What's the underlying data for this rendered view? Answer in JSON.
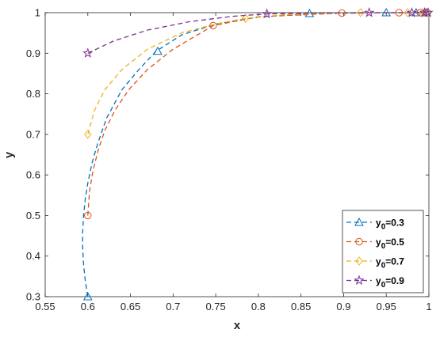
{
  "chart_data": {
    "type": "line",
    "xlabel": "x",
    "ylabel": "y",
    "xlim": [
      0.55,
      1.0
    ],
    "ylim": [
      0.3,
      1.0
    ],
    "xticks": [
      "0.55",
      "0.6",
      "0.65",
      "0.7",
      "0.75",
      "0.8",
      "0.85",
      "0.9",
      "0.95",
      "1"
    ],
    "yticks": [
      "0.3",
      "0.4",
      "0.5",
      "0.6",
      "0.7",
      "0.8",
      "0.9",
      "1"
    ],
    "grid": false,
    "legend_position": "bottom-right",
    "series": [
      {
        "name_base": "y",
        "name_sub": "0",
        "name_value": "=0.3",
        "color": "#0072BD",
        "marker": "triangle",
        "line": [
          [
            0.6,
            0.3
          ],
          [
            0.597,
            0.34
          ],
          [
            0.595,
            0.38
          ],
          [
            0.594,
            0.42
          ],
          [
            0.594,
            0.46
          ],
          [
            0.595,
            0.5
          ],
          [
            0.597,
            0.54
          ],
          [
            0.6,
            0.58
          ],
          [
            0.605,
            0.63
          ],
          [
            0.612,
            0.68
          ],
          [
            0.622,
            0.74
          ],
          [
            0.64,
            0.81
          ],
          [
            0.66,
            0.86
          ],
          [
            0.68,
            0.905
          ],
          [
            0.71,
            0.945
          ],
          [
            0.75,
            0.972
          ],
          [
            0.8,
            0.989
          ],
          [
            0.86,
            0.997
          ],
          [
            0.95,
            1.0
          ],
          [
            1.0,
            1.0
          ]
        ],
        "markers": [
          [
            0.6,
            0.3
          ],
          [
            0.682,
            0.905
          ],
          [
            0.86,
            0.998
          ],
          [
            0.95,
            1.0
          ],
          [
            0.985,
            1.0
          ],
          [
            0.997,
            1.0
          ]
        ]
      },
      {
        "name_base": "y",
        "name_sub": "0",
        "name_value": "=0.5",
        "color": "#D95319",
        "marker": "circle",
        "line": [
          [
            0.6,
            0.5
          ],
          [
            0.602,
            0.56
          ],
          [
            0.606,
            0.61
          ],
          [
            0.612,
            0.66
          ],
          [
            0.62,
            0.71
          ],
          [
            0.632,
            0.76
          ],
          [
            0.648,
            0.81
          ],
          [
            0.67,
            0.86
          ],
          [
            0.7,
            0.91
          ],
          [
            0.747,
            0.968
          ],
          [
            0.8,
            0.99
          ],
          [
            0.9,
            0.999
          ],
          [
            1.0,
            1.0
          ]
        ],
        "markers": [
          [
            0.6,
            0.5
          ],
          [
            0.747,
            0.968
          ],
          [
            0.898,
            0.999
          ],
          [
            0.965,
            1.0
          ],
          [
            0.99,
            1.0
          ],
          [
            0.998,
            1.0
          ]
        ]
      },
      {
        "name_base": "y",
        "name_sub": "0",
        "name_value": "=0.7",
        "color": "#EDB120",
        "marker": "diamond",
        "line": [
          [
            0.6,
            0.7
          ],
          [
            0.608,
            0.76
          ],
          [
            0.62,
            0.81
          ],
          [
            0.64,
            0.86
          ],
          [
            0.67,
            0.91
          ],
          [
            0.71,
            0.95
          ],
          [
            0.75,
            0.972
          ],
          [
            0.785,
            0.986
          ],
          [
            0.83,
            0.995
          ],
          [
            0.92,
            1.0
          ],
          [
            1.0,
            1.0
          ]
        ],
        "markers": [
          [
            0.6,
            0.7
          ],
          [
            0.785,
            0.986
          ],
          [
            0.92,
            1.0
          ],
          [
            0.975,
            1.0
          ],
          [
            0.993,
            1.0
          ],
          [
            0.999,
            1.0
          ]
        ]
      },
      {
        "name_base": "y",
        "name_sub": "0",
        "name_value": "=0.9",
        "color": "#7E2F8E",
        "marker": "star",
        "line": [
          [
            0.6,
            0.9
          ],
          [
            0.63,
            0.93
          ],
          [
            0.67,
            0.957
          ],
          [
            0.72,
            0.978
          ],
          [
            0.77,
            0.991
          ],
          [
            0.81,
            0.997
          ],
          [
            0.9,
            1.0
          ],
          [
            1.0,
            1.0
          ]
        ],
        "markers": [
          [
            0.6,
            0.9
          ],
          [
            0.81,
            0.997
          ],
          [
            0.93,
            1.0
          ],
          [
            0.98,
            1.0
          ],
          [
            0.995,
            1.0
          ],
          [
            0.999,
            1.0
          ]
        ]
      }
    ]
  }
}
